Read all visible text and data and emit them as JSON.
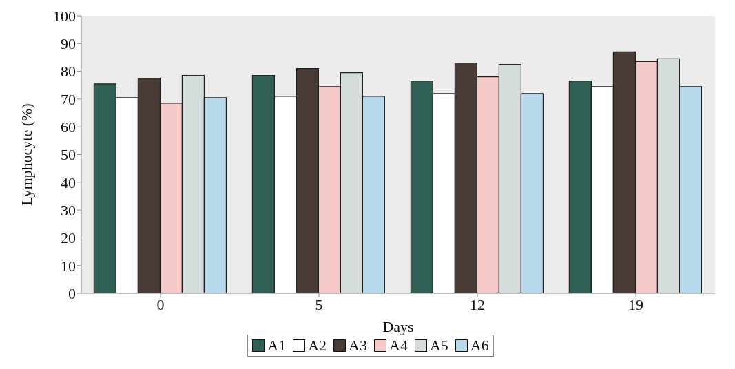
{
  "chart_data": {
    "type": "bar",
    "xlabel": "Days",
    "ylabel": "Lymphocyte (%)",
    "categories": [
      "0",
      "5",
      "12",
      "19"
    ],
    "series": [
      {
        "name": "A1",
        "color": "#2f5f55",
        "values": [
          75.5,
          78.5,
          76.5,
          76.5
        ]
      },
      {
        "name": "A2",
        "color": "#ffffff",
        "values": [
          70.5,
          71,
          72,
          74.5
        ]
      },
      {
        "name": "A3",
        "color": "#4a3a36",
        "values": [
          77.5,
          81,
          83,
          87
        ]
      },
      {
        "name": "A4",
        "color": "#f6c9c9",
        "values": [
          68.5,
          74.5,
          78,
          83.5
        ]
      },
      {
        "name": "A5",
        "color": "#d4dcdc",
        "values": [
          78.5,
          79.5,
          82.5,
          84.5
        ]
      },
      {
        "name": "A6",
        "color": "#b8d8ec",
        "values": [
          70.5,
          71,
          72,
          74.5
        ]
      }
    ],
    "ylim": [
      0,
      100
    ],
    "yticks": [
      0,
      10,
      20,
      30,
      40,
      50,
      60,
      70,
      80,
      90,
      100
    ],
    "grid": false,
    "legend": "bottom"
  }
}
